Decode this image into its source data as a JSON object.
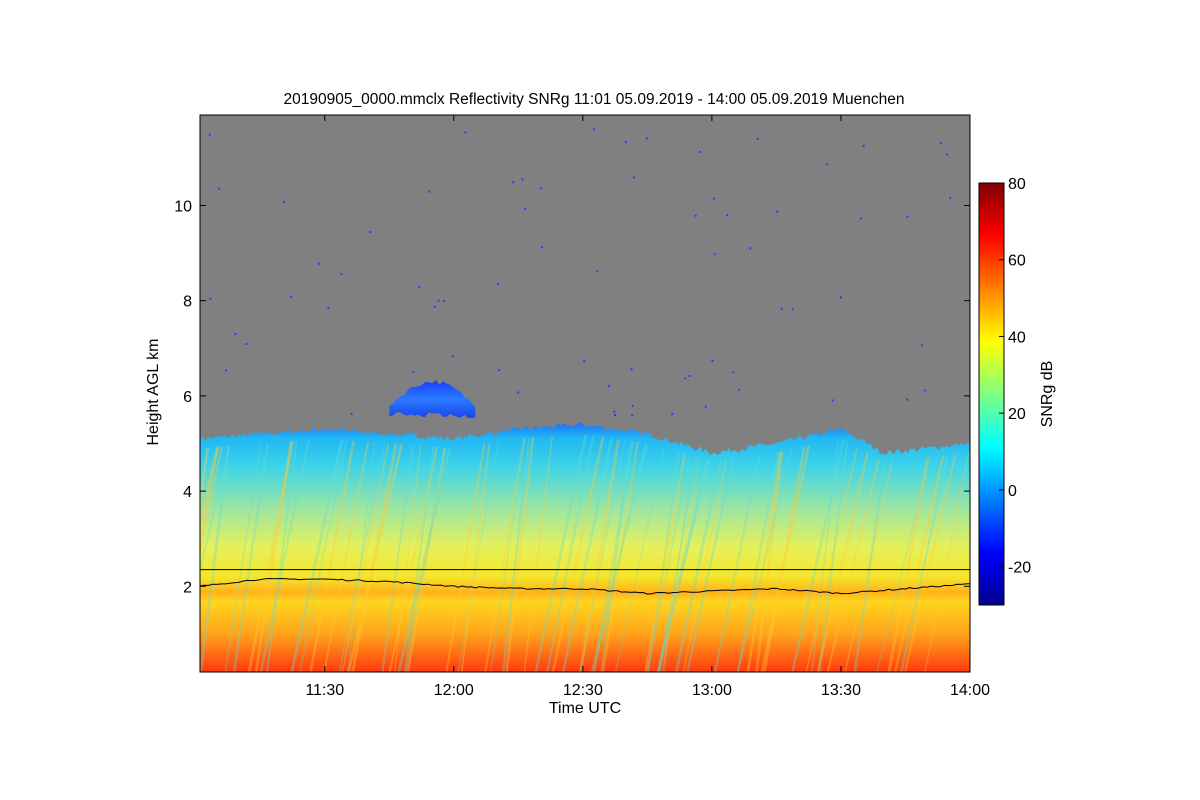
{
  "chart_data": {
    "type": "heatmap",
    "title": "20190905_0000.mmclx Reflectivity SNRg   11:01 05.09.2019 - 14:00 05.09.2019 Muenchen",
    "xlabel": "Time UTC",
    "ylabel": "Height AGL km",
    "x_range": [
      "11:01",
      "14:00"
    ],
    "x_ticks": [
      "11:30",
      "12:00",
      "12:30",
      "13:00",
      "13:30",
      "14:00"
    ],
    "y_range": [
      0.2,
      11.9
    ],
    "y_ticks": [
      2,
      4,
      6,
      8,
      10
    ],
    "colorbar": {
      "label": "SNRg dB",
      "range": [
        -30,
        80
      ],
      "ticks": [
        -20,
        0,
        20,
        40,
        60,
        80
      ]
    },
    "background_color": "#808080",
    "features": {
      "echo_top_km": {
        "times": [
          "11:01",
          "11:15",
          "11:30",
          "11:45",
          "12:00",
          "12:15",
          "12:30",
          "12:45",
          "13:00",
          "13:15",
          "13:30",
          "13:40",
          "14:00"
        ],
        "values": [
          5.1,
          5.2,
          5.3,
          5.2,
          5.1,
          5.3,
          5.4,
          5.2,
          4.8,
          5.0,
          5.3,
          4.8,
          5.0
        ]
      },
      "upper_cloud_layer_km": {
        "start": "11:45",
        "end": "12:05",
        "bottom": 5.6,
        "top": 6.3
      },
      "reference_line_km": 2.35,
      "boundary_layer_line_km": {
        "times": [
          "11:01",
          "11:15",
          "11:30",
          "11:45",
          "12:00",
          "12:15",
          "12:30",
          "12:45",
          "13:00",
          "13:15",
          "13:30",
          "13:45",
          "14:00"
        ],
        "values": [
          2.0,
          2.15,
          2.15,
          2.1,
          2.0,
          1.95,
          1.95,
          1.85,
          1.9,
          1.95,
          1.85,
          1.95,
          2.05
        ]
      }
    }
  }
}
